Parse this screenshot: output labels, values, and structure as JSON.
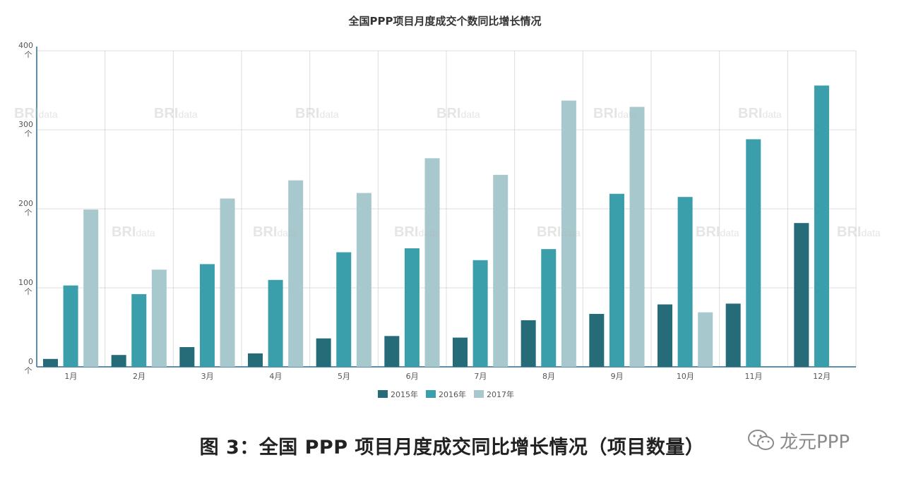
{
  "chart_data": {
    "type": "bar",
    "title": "全国PPP项目月度成交个数同比增长情况",
    "categories": [
      "1月",
      "2月",
      "3月",
      "4月",
      "5月",
      "6月",
      "7月",
      "8月",
      "9月",
      "10月",
      "11月",
      "12月"
    ],
    "series": [
      {
        "name": "2015年",
        "color": "#266b78",
        "values": [
          10,
          15,
          25,
          17,
          36,
          39,
          37,
          59,
          67,
          79,
          80,
          182
        ]
      },
      {
        "name": "2016年",
        "color": "#3a9eab",
        "values": [
          103,
          92,
          130,
          110,
          145,
          150,
          135,
          149,
          219,
          215,
          288,
          356
        ]
      },
      {
        "name": "2017年",
        "color": "#a7c8cc",
        "values": [
          199,
          123,
          213,
          236,
          220,
          264,
          243,
          337,
          329,
          69,
          null,
          null
        ]
      }
    ],
    "yticks": [
      "0",
      "100",
      "200",
      "300",
      "400"
    ],
    "tick_marker": "个",
    "ylim": [
      0,
      400
    ],
    "grid": true,
    "legend_position": "bottom-center"
  },
  "caption": "图 3：全国 PPP 项目月度成交同比增长情况（项目数量）",
  "brand": {
    "text": "龙元PPP",
    "icon": "wechat-icon"
  }
}
